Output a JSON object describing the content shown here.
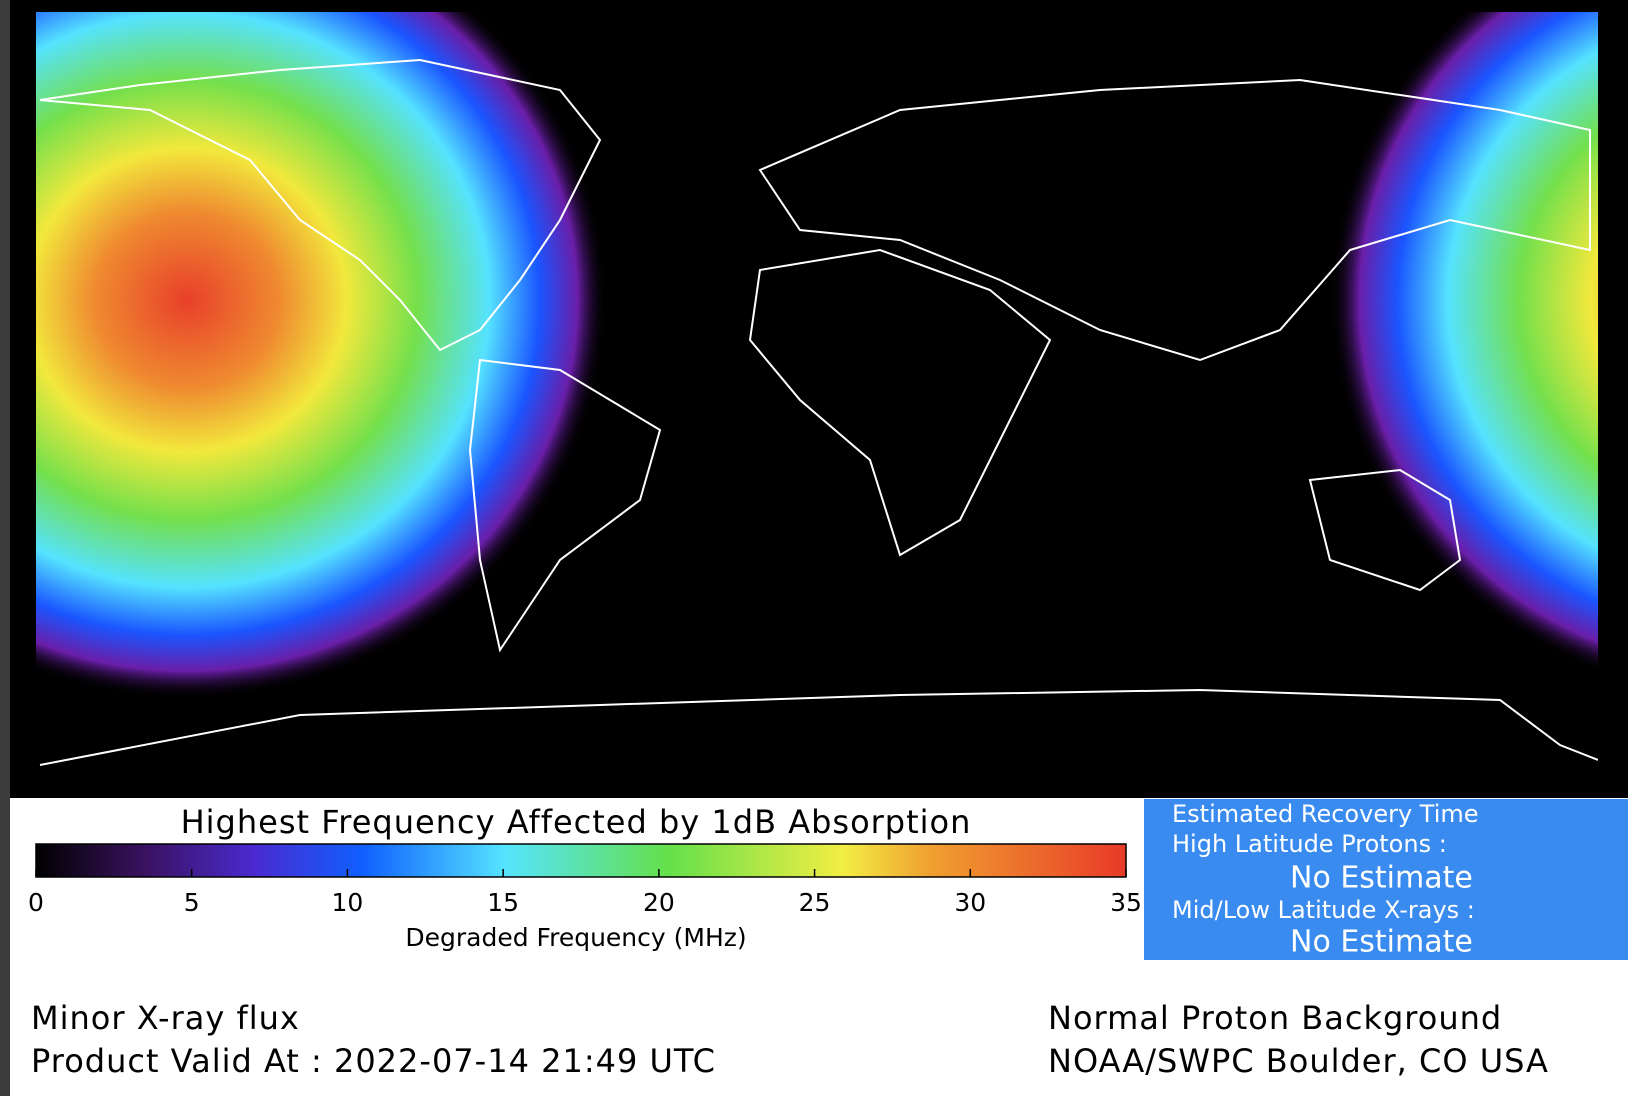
{
  "title": "Highest Frequency Affected by 1dB Absorption",
  "colorbar": {
    "label": "Degraded Frequency (MHz)",
    "range": [
      0,
      35
    ],
    "ticks": [
      0,
      5,
      10,
      15,
      20,
      25,
      30,
      35
    ]
  },
  "recovery": {
    "heading": "Estimated Recovery Time",
    "high_latitude_label": "High Latitude Protons :",
    "high_latitude_value": "No Estimate",
    "mid_low_label": "Mid/Low Latitude X-rays :",
    "mid_low_value": "No Estimate"
  },
  "footer": {
    "xray_status": "Minor X-ray flux",
    "valid_label": "Product Valid At : 2022-07-14 21:49 UTC",
    "proton_status": "Normal Proton Background",
    "source": "NOAA/SWPC Boulder, CO USA"
  }
}
